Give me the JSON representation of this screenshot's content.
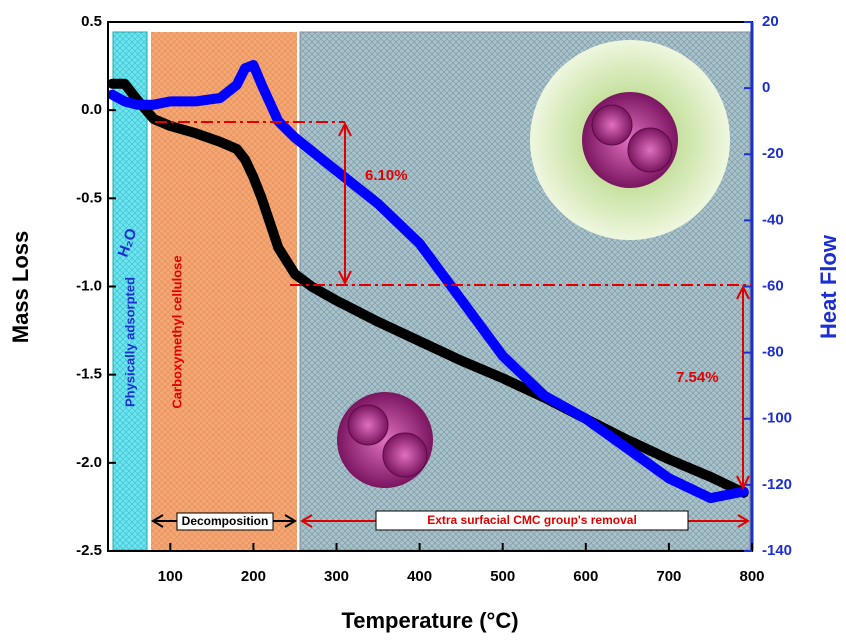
{
  "chart_data": {
    "type": "line",
    "xlabel": "Temperature (°C)",
    "ylabel": "Mass Loss",
    "y2label": "Heat Flow",
    "x": [
      30,
      45,
      60,
      80,
      100,
      130,
      160,
      180,
      190,
      200,
      210,
      230,
      250,
      270,
      300,
      350,
      400,
      450,
      500,
      550,
      600,
      650,
      700,
      750,
      790
    ],
    "series": [
      {
        "name": "Mass Loss",
        "color": "#000000",
        "values": [
          0.15,
          0.15,
          0.06,
          -0.05,
          -0.09,
          -0.13,
          -0.18,
          -0.22,
          -0.28,
          -0.38,
          -0.5,
          -0.78,
          -0.93,
          -1.0,
          -1.08,
          -1.2,
          -1.31,
          -1.42,
          -1.52,
          -1.63,
          -1.75,
          -1.87,
          -1.98,
          -2.08,
          -2.17
        ]
      },
      {
        "name": "Heat Flow",
        "color": "#0000ff",
        "axis": "y2",
        "values": [
          -2,
          -4,
          -5,
          -5,
          -4,
          -4,
          -3,
          1,
          6,
          7,
          1,
          -10,
          -15,
          -19,
          -25,
          -35,
          -47,
          -64,
          -81,
          -93,
          -100,
          -109,
          -118,
          -124,
          -122
        ]
      }
    ],
    "xlim": [
      25,
      800
    ],
    "xticks": [
      100,
      200,
      300,
      400,
      500,
      600,
      700,
      800
    ],
    "ylim": [
      -2.5,
      0.5
    ],
    "yticks": [
      -2.5,
      {
        "value": -2,
        "label": "-2.0"
      },
      -1.5,
      {
        "value": -1,
        "label": "-1.0"
      },
      -0.5,
      {
        "value": 0,
        "label": "0.0"
      },
      0.5
    ],
    "y2lim": [
      -140,
      20
    ],
    "y2ticks": [
      -140,
      -120,
      -100,
      -80,
      -60,
      -40,
      -20,
      0,
      20
    ],
    "annotations": {
      "region1": "Physically adsorpted",
      "water": "H₂O",
      "region2": "Carboxymethyl cellulose",
      "phase1": "Decomposition",
      "phase2": "Extra surfacial CMC group's removal",
      "loss1": "6.10%",
      "loss2": "7.54%"
    }
  }
}
